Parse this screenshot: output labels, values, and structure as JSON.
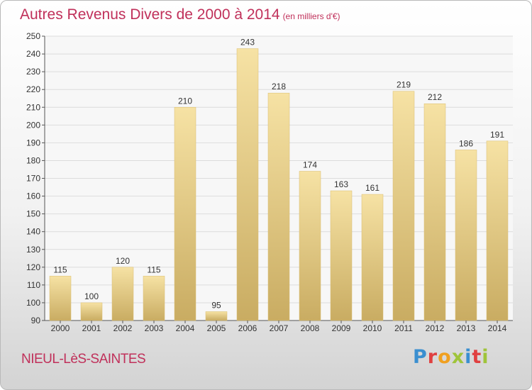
{
  "header": {
    "title": "Autres Revenus Divers de 2000 à 2014",
    "subtitle": "(en milliers d'€)"
  },
  "footer": {
    "commune": "NIEUL-LèS-SAINTES",
    "brand": "Proxiti",
    "brand_colors": [
      "#3a8fd0",
      "#e04040",
      "#f0a020",
      "#9fc43a",
      "#3a8fd0",
      "#e04040",
      "#9fc43a"
    ]
  },
  "chart_data": {
    "type": "bar",
    "title": "Autres Revenus Divers de 2000 à 2014",
    "subtitle": "(en milliers d'€)",
    "categories": [
      "2000",
      "2001",
      "2002",
      "2003",
      "2004",
      "2005",
      "2006",
      "2007",
      "2008",
      "2009",
      "2010",
      "2011",
      "2012",
      "2013",
      "2014"
    ],
    "values": [
      115,
      100,
      120,
      115,
      210,
      95,
      243,
      218,
      174,
      163,
      161,
      219,
      212,
      186,
      191
    ],
    "ylim": [
      90,
      250
    ],
    "yticks": [
      90,
      100,
      110,
      120,
      130,
      140,
      150,
      160,
      170,
      180,
      190,
      200,
      210,
      220,
      230,
      240,
      250
    ],
    "grid": true,
    "bar_color": "#e8cc80",
    "bar_color_light": "#f6e2a4",
    "bar_color_dark": "#c9ac62",
    "data_labels": true
  }
}
